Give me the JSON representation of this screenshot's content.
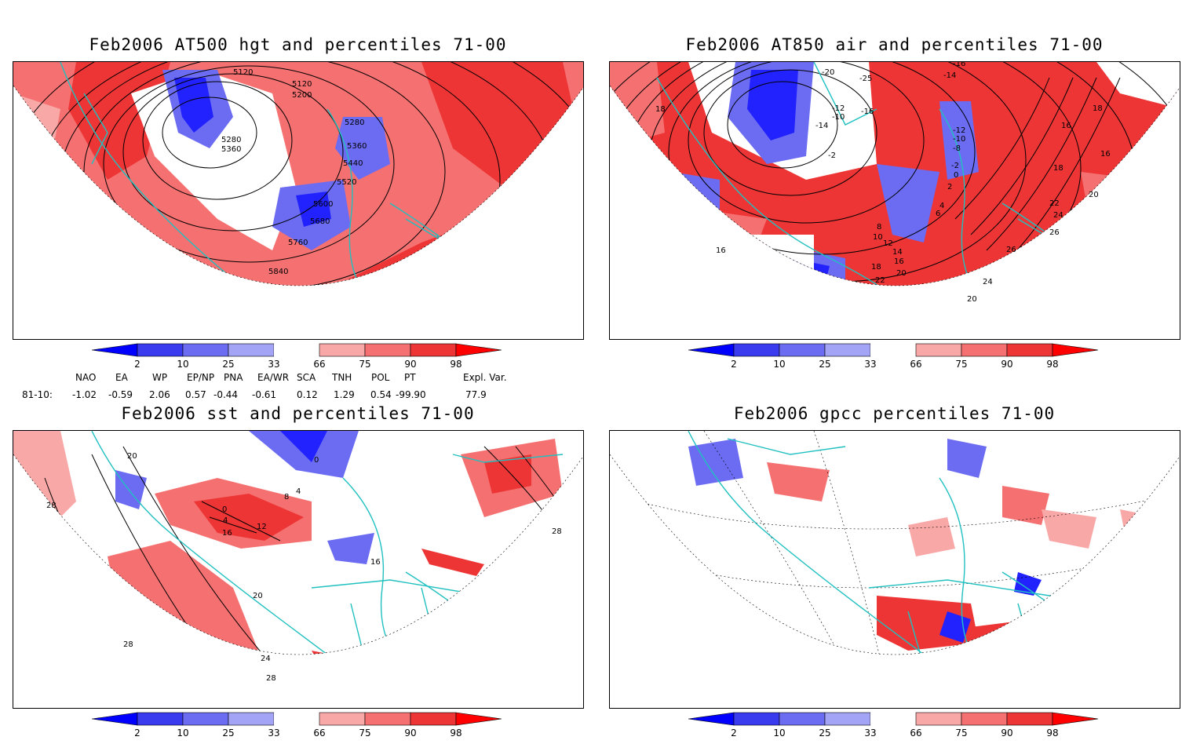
{
  "panels": [
    {
      "id": "p1",
      "title": "Feb2006 AT500 hgt and percentiles 71-00",
      "contour_labels": [
        "5120",
        "5120",
        "5200",
        "5280",
        "5280",
        "5360",
        "5360",
        "5440",
        "5520",
        "5600",
        "5680",
        "5760",
        "5840"
      ]
    },
    {
      "id": "p2",
      "title": "Feb2006 AT850 air and percentiles 71-00",
      "contour_labels": [
        "-20",
        "-25",
        "-16",
        "-14",
        "-12",
        "-10",
        "-16",
        "-14",
        "-12",
        "-10",
        "-8",
        "-2",
        "-2",
        "0",
        "2",
        "4",
        "6",
        "8",
        "10",
        "12",
        "14",
        "16",
        "18",
        "20",
        "22",
        "20",
        "24",
        "26",
        "26",
        "24",
        "22",
        "20",
        "18",
        "16",
        "18",
        "16",
        "18",
        "16"
      ]
    },
    {
      "id": "p3",
      "title": "Feb2006 sst and percentiles 71-00",
      "contour_labels": [
        "20",
        "28",
        "0",
        "4",
        "16",
        "12",
        "8",
        "4",
        "0",
        "28",
        "16",
        "20",
        "24",
        "28",
        "28"
      ]
    },
    {
      "id": "p4",
      "title": "Feb2006 gpcc percentiles 71-00",
      "contour_labels": []
    }
  ],
  "colorbar": {
    "ticks": [
      "2",
      "10",
      "25",
      "33",
      "66",
      "75",
      "90",
      "98"
    ],
    "colors": [
      "#0000ff",
      "#3a3aef",
      "#6c6cf2",
      "#a4a4f7",
      "#ffffff",
      "#f9a8a8",
      "#f57070",
      "#ee3535",
      "#ff0000"
    ]
  },
  "teleconnections": {
    "headers": [
      "NAO",
      "EA",
      "WP",
      "EP/NP",
      "PNA",
      "EA/WR",
      "SCA",
      "TNH",
      "POL",
      "PT",
      "Expl. Var."
    ],
    "row_label": "81-10:",
    "values": [
      "-1.02",
      "-0.59",
      "2.06",
      "0.57",
      "-0.44",
      "-0.61",
      "0.12",
      "1.29",
      "0.54",
      "-99.90",
      "77.9"
    ]
  },
  "map_colors": {
    "red_strong": "#ff0000",
    "red_mid": "#ee3535",
    "red_light": "#f57070",
    "red_pale": "#f9a8a8",
    "blue_strong": "#2222ff",
    "blue_mid": "#6c6cf2",
    "blue_pale": "#a4a4f7",
    "coast": "#20c0c0"
  }
}
